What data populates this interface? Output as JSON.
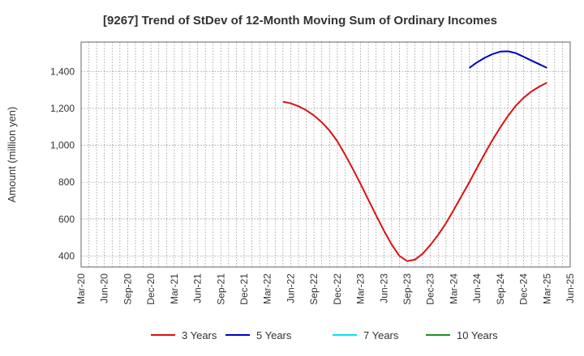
{
  "chart_data": {
    "type": "line",
    "title": "[9267]  Trend of StDev of 12-Month Moving Sum of Ordinary Incomes",
    "xlabel": "",
    "ylabel": "Amount (million yen)",
    "ylim": [
      340,
      1560
    ],
    "yticks": [
      400,
      600,
      800,
      1000,
      1200,
      1400
    ],
    "ytick_labels": [
      "400",
      "600",
      "800",
      "1,000",
      "1,200",
      "1,400"
    ],
    "x_tick_labels": [
      "Mar-20",
      "Jun-20",
      "Sep-20",
      "Dec-20",
      "Mar-21",
      "Jun-21",
      "Sep-21",
      "Dec-21",
      "Mar-22",
      "Jun-22",
      "Sep-22",
      "Dec-22",
      "Mar-23",
      "Jun-23",
      "Sep-23",
      "Dec-23",
      "Mar-24",
      "Jun-24",
      "Sep-24",
      "Dec-24",
      "Mar-25",
      "Jun-25"
    ],
    "x_start": "Mar-20",
    "grid": true,
    "legend_position": "bottom",
    "series": [
      {
        "name": "3 Years",
        "color": "#dd1111",
        "points": [
          [
            "May-22",
            1237
          ],
          [
            "Jun-22",
            1228
          ],
          [
            "Jul-22",
            1212
          ],
          [
            "Aug-22",
            1190
          ],
          [
            "Sep-22",
            1162
          ],
          [
            "Oct-22",
            1125
          ],
          [
            "Nov-22",
            1080
          ],
          [
            "Dec-22",
            1022
          ],
          [
            "Jan-23",
            950
          ],
          [
            "Feb-23",
            872
          ],
          [
            "Mar-23",
            790
          ],
          [
            "Apr-23",
            705
          ],
          [
            "May-23",
            620
          ],
          [
            "Jun-23",
            537
          ],
          [
            "Jul-23",
            462
          ],
          [
            "Aug-23",
            400
          ],
          [
            "Sep-23",
            372
          ],
          [
            "Oct-23",
            380
          ],
          [
            "Nov-23",
            412
          ],
          [
            "Dec-23",
            460
          ],
          [
            "Jan-24",
            515
          ],
          [
            "Feb-24",
            578
          ],
          [
            "Mar-24",
            650
          ],
          [
            "Apr-24",
            725
          ],
          [
            "May-24",
            800
          ],
          [
            "Jun-24",
            878
          ],
          [
            "Jul-24",
            955
          ],
          [
            "Aug-24",
            1030
          ],
          [
            "Sep-24",
            1098
          ],
          [
            "Oct-24",
            1160
          ],
          [
            "Nov-24",
            1215
          ],
          [
            "Dec-24",
            1258
          ],
          [
            "Jan-25",
            1292
          ],
          [
            "Feb-25",
            1318
          ],
          [
            "Mar-25",
            1340
          ]
        ]
      },
      {
        "name": "5 Years",
        "color": "#0000cc",
        "points": [
          [
            "May-24",
            1420
          ],
          [
            "Jun-24",
            1450
          ],
          [
            "Jul-24",
            1475
          ],
          [
            "Aug-24",
            1495
          ],
          [
            "Sep-24",
            1508
          ],
          [
            "Oct-24",
            1510
          ],
          [
            "Nov-24",
            1500
          ],
          [
            "Dec-24",
            1480
          ],
          [
            "Jan-25",
            1460
          ],
          [
            "Feb-25",
            1440
          ],
          [
            "Mar-25",
            1420
          ]
        ]
      },
      {
        "name": "7 Years",
        "color": "#00e5ee",
        "points": []
      },
      {
        "name": "10 Years",
        "color": "#228b22",
        "points": []
      }
    ]
  }
}
